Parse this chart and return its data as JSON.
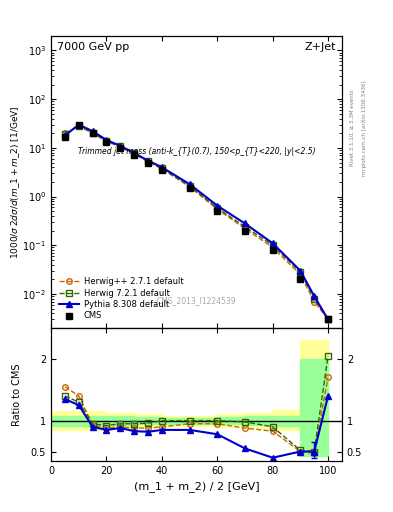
{
  "title_left": "7000 GeV pp",
  "title_right": "Z+Jet",
  "plot_title": "Trimmed jet mass (anti-k_{T}(0.7), 150<p_{T}<220, |y|<2.5)",
  "ylabel_main": "1000/σ 2dσ/d(m_1 + m_2) [1/GeV]",
  "ylabel_ratio": "Ratio to CMS",
  "xlabel": "(m_1 + m_2) / 2 [GeV]",
  "watermark": "CMS_2013_I1224539",
  "side_text": "mcplots.cern.ch [arXiv:1306.3436]",
  "rivet_text": "Rivet 3.1.10, ≥ 3.3M events",
  "cms_x": [
    5,
    10,
    15,
    20,
    25,
    30,
    35,
    40,
    50,
    60,
    70,
    80,
    90,
    100
  ],
  "cms_y": [
    17.0,
    30.0,
    20.0,
    13.0,
    10.0,
    7.0,
    5.0,
    3.5,
    1.5,
    0.5,
    0.2,
    0.08,
    0.02,
    0.003
  ],
  "herwig_x": [
    5,
    10,
    15,
    20,
    25,
    30,
    35,
    40,
    50,
    60,
    70,
    80,
    90,
    95,
    100
  ],
  "herwig_y": [
    20.0,
    28.0,
    20.0,
    13.5,
    10.5,
    7.5,
    5.2,
    3.7,
    1.6,
    0.55,
    0.22,
    0.09,
    0.025,
    0.007,
    0.003
  ],
  "herwig7_x": [
    5,
    10,
    15,
    20,
    25,
    30,
    35,
    40,
    50,
    60,
    70,
    80,
    90,
    95,
    100
  ],
  "herwig7_y": [
    19.0,
    28.5,
    20.5,
    14.0,
    10.8,
    7.8,
    5.3,
    3.8,
    1.65,
    0.58,
    0.24,
    0.1,
    0.028,
    0.008,
    0.003
  ],
  "pythia_x": [
    5,
    10,
    15,
    20,
    25,
    30,
    35,
    40,
    50,
    60,
    70,
    80,
    90,
    95,
    100
  ],
  "pythia_y": [
    18.0,
    30.0,
    22.0,
    14.5,
    11.0,
    7.8,
    5.5,
    4.0,
    1.8,
    0.65,
    0.28,
    0.11,
    0.03,
    0.009,
    0.003
  ],
  "ratio_herwig_x": [
    5,
    10,
    15,
    20,
    25,
    30,
    35,
    40,
    50,
    60,
    70,
    80,
    90,
    95,
    100
  ],
  "ratio_herwig_y": [
    1.55,
    1.4,
    0.93,
    0.88,
    0.9,
    0.88,
    0.88,
    0.9,
    0.95,
    0.95,
    0.88,
    0.83,
    0.5,
    0.47,
    1.7
  ],
  "ratio_herwig7_x": [
    5,
    10,
    15,
    20,
    25,
    30,
    35,
    40,
    50,
    60,
    70,
    80,
    90,
    95,
    100
  ],
  "ratio_herwig7_y": [
    1.4,
    1.3,
    0.95,
    0.92,
    0.95,
    0.95,
    0.96,
    1.0,
    1.0,
    1.0,
    0.98,
    0.9,
    0.52,
    0.5,
    2.05
  ],
  "ratio_pythia_x": [
    5,
    10,
    15,
    20,
    25,
    30,
    35,
    40,
    50,
    60,
    70,
    80,
    90,
    95,
    100
  ],
  "ratio_pythia_y": [
    1.35,
    1.25,
    0.9,
    0.85,
    0.88,
    0.83,
    0.82,
    0.85,
    0.85,
    0.78,
    0.55,
    0.4,
    0.5,
    0.5,
    1.4
  ],
  "yellow_band_x": [
    0,
    10,
    20,
    30,
    40,
    50,
    60,
    70,
    80,
    90,
    100
  ],
  "yellow_band_lo": [
    0.85,
    0.85,
    0.88,
    0.9,
    0.92,
    0.92,
    0.9,
    0.88,
    0.85,
    0.8,
    0.8
  ],
  "yellow_band_hi": [
    1.15,
    1.15,
    1.12,
    1.1,
    1.08,
    1.08,
    1.1,
    1.12,
    1.18,
    2.3,
    2.3
  ],
  "green_band_x": [
    0,
    10,
    20,
    30,
    40,
    50,
    60,
    70,
    80,
    90,
    100
  ],
  "green_band_lo": [
    0.92,
    0.92,
    0.93,
    0.94,
    0.95,
    0.95,
    0.94,
    0.93,
    0.92,
    0.42,
    0.42
  ],
  "green_band_hi": [
    1.08,
    1.08,
    1.07,
    1.06,
    1.05,
    1.05,
    1.06,
    1.07,
    1.08,
    2.0,
    2.0
  ],
  "color_cms": "#000000",
  "color_herwig": "#cc6600",
  "color_herwig7": "#336600",
  "color_pythia": "#0000cc",
  "color_yellow": "#ffff99",
  "color_green": "#99ff99",
  "xlim": [
    0,
    105
  ],
  "ylim_main": [
    0.002,
    2000
  ],
  "ylim_ratio": [
    0.35,
    2.5
  ]
}
